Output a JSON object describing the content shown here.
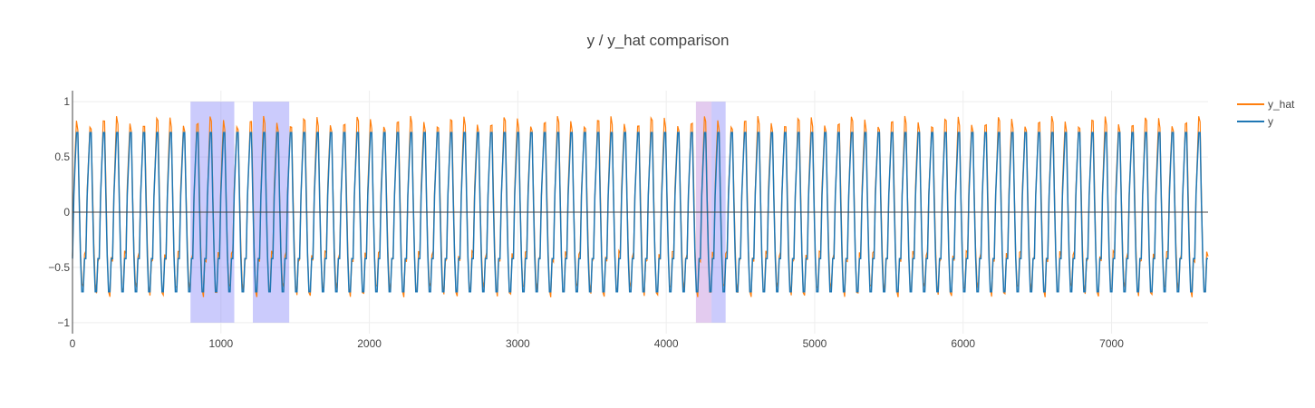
{
  "chart_data": {
    "type": "line",
    "title": "y / y_hat comparison",
    "xlabel": "",
    "ylabel": "",
    "xlim": [
      0,
      7650
    ],
    "ylim": [
      -1.1,
      1.1
    ],
    "x_ticks": [
      0,
      1000,
      2000,
      3000,
      4000,
      5000,
      6000,
      7000
    ],
    "x_tick_labels": [
      "0",
      "1000",
      "2000",
      "3000",
      "4000",
      "5000",
      "6000",
      "7000"
    ],
    "y_ticks": [
      -1,
      -0.5,
      0,
      0.5,
      1
    ],
    "y_tick_labels": [
      "−1",
      "−0.5",
      "0",
      "0.5",
      "1"
    ],
    "grid": true,
    "legend_position": "top-right",
    "series": [
      {
        "name": "y_hat",
        "color": "#ff7f0e"
      },
      {
        "name": "y",
        "color": "#1f77b4"
      }
    ],
    "signal": {
      "period": 90,
      "total_points": 7650,
      "y_values_one_cycle": [
        -0.42,
        0.15,
        0.45,
        0.72,
        0.72,
        0.12,
        -0.4,
        -0.72,
        -0.72,
        -0.42
      ],
      "y_hat_values_one_cycle": [
        -0.4,
        0.18,
        0.5,
        0.82,
        0.78,
        0.2,
        -0.35,
        -0.68,
        -0.72,
        -0.4
      ]
    },
    "highlight_regions": [
      {
        "x0": 795,
        "x1": 1090,
        "color": "#6a6af5"
      },
      {
        "x0": 1215,
        "x1": 1460,
        "color": "#6a6af5"
      },
      {
        "x0": 4200,
        "x1": 4305,
        "color": "#b06ad0"
      },
      {
        "x0": 4305,
        "x1": 4400,
        "color": "#6a6af5"
      }
    ]
  }
}
